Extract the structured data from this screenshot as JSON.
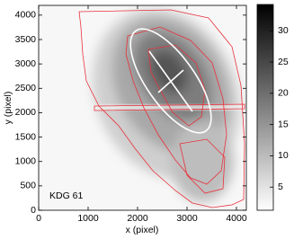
{
  "chart_data": {
    "type": "image",
    "annotation": "KDG 61",
    "xlabel": "x (pixel)",
    "ylabel": "y (pixel)",
    "xlim": [
      0,
      4200
    ],
    "ylim": [
      0,
      4200
    ],
    "xticks": [
      0,
      1000,
      2000,
      3000,
      4000
    ],
    "yticks": [
      0,
      500,
      1000,
      1500,
      2000,
      2500,
      3000,
      3500,
      4000
    ],
    "colorbar": {
      "lim": [
        1.3,
        34.2
      ],
      "ticks": [
        5,
        10,
        15,
        20,
        25,
        30
      ],
      "colors": [
        "#ffffff",
        "#000000"
      ]
    }
  }
}
